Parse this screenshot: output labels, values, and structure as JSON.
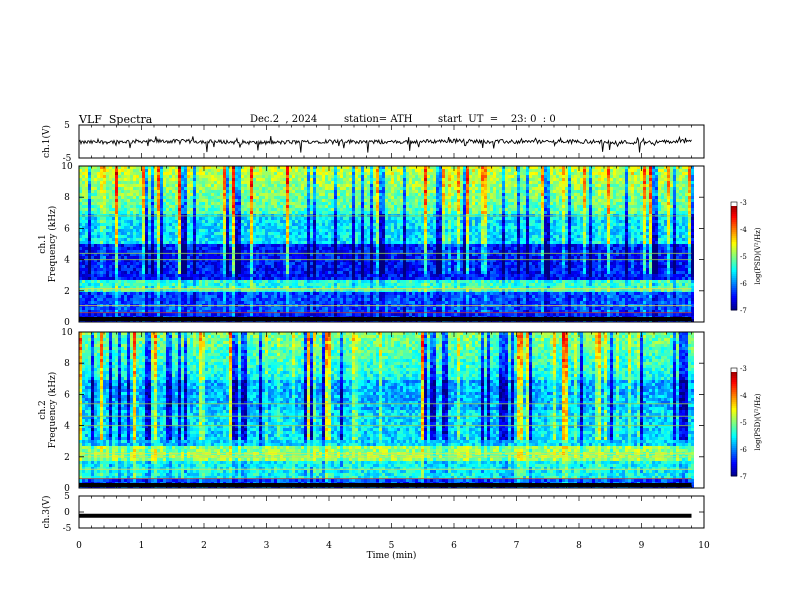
{
  "header": {
    "title": "VLF  Spectra",
    "date": "Dec.2  , 2024",
    "station": "station= ATH",
    "start": "start  UT  =    23: 0  : 0"
  },
  "chart_data": [
    {
      "type": "line",
      "panel": "ch1_waveform",
      "ylabel": "ch.1(V)",
      "ylim": [
        -5,
        5
      ],
      "yticks": [
        "5",
        "-5"
      ],
      "x": [
        0,
        1,
        2,
        3,
        4,
        5,
        6,
        7,
        8,
        9,
        9.8
      ],
      "values": [
        -0.3,
        0.1,
        0.0,
        -0.4,
        0.1,
        -0.2,
        0.2,
        -0.1,
        0.0,
        -0.3,
        0.1
      ],
      "color": "#000000"
    },
    {
      "type": "heatmap",
      "panel": "ch1_spectrogram",
      "ylabel": "ch.1",
      "ylabel2": "Frequency  (kHz)",
      "ylim": [
        0,
        10
      ],
      "yticks": [
        "0",
        "2",
        "4",
        "6",
        "8",
        "10"
      ],
      "xlim": [
        0,
        10
      ],
      "data_xmax": 9.8,
      "colorbar": {
        "label": "log(PSD)(V²/Hz)",
        "ticks": [
          "-3",
          "-4",
          "-5",
          "-6",
          "-7"
        ],
        "range": [
          -7,
          -3
        ]
      },
      "lines_khz": [
        0.6,
        1.05,
        2.05,
        2.15,
        4.0,
        4.4,
        6.8
      ]
    },
    {
      "type": "heatmap",
      "panel": "ch2_spectrogram",
      "ylabel": "ch.2",
      "ylabel2": "Frequency  (kHz)",
      "ylim": [
        0,
        10
      ],
      "yticks": [
        "0",
        "2",
        "4",
        "6",
        "8",
        "10"
      ],
      "xlim": [
        0,
        10
      ],
      "data_xmax": 9.8,
      "colorbar": {
        "label": "log(PSD)(V²/Hz)",
        "ticks": [
          "-3",
          "-4",
          "-5",
          "-6",
          "-7"
        ],
        "range": [
          -7,
          -3
        ]
      },
      "lines_khz": [
        0.6,
        1.2,
        2.0,
        2.2,
        4.0,
        4.6,
        5.4
      ]
    },
    {
      "type": "line",
      "panel": "ch3_waveform",
      "ylabel": "ch.3(V)",
      "ylim": [
        -5,
        5
      ],
      "yticks": [
        "5",
        "0",
        "-5"
      ],
      "x": [
        0,
        9.8
      ],
      "values": [
        -1.2,
        -1.2
      ],
      "color": "#000000"
    }
  ],
  "xaxis": {
    "label": "Time  (min)",
    "ticks": [
      "0",
      "1",
      "2",
      "3",
      "4",
      "5",
      "6",
      "7",
      "8",
      "9",
      "10"
    ]
  }
}
